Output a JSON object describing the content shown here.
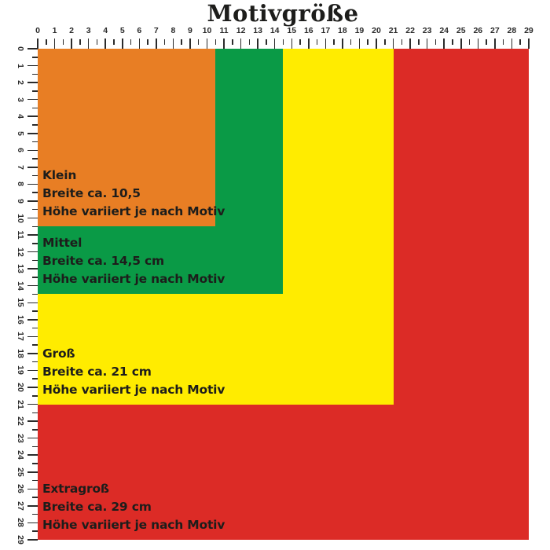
{
  "title": "Motivgröße",
  "ruler": {
    "unit_min": 0,
    "unit_max": 29,
    "numbered_step": 1,
    "minor_step": 0.5
  },
  "text_color": "#1D1D1B",
  "sizes": [
    {
      "id": "klein",
      "name": "Klein",
      "width_label": "Breite ca. 10,5",
      "height_note": "Höhe variiert je nach Motiv",
      "width_cm": 10.5,
      "color": "#E87E24"
    },
    {
      "id": "mittel",
      "name": "Mittel",
      "width_label": "Breite ca. 14,5 cm",
      "height_note": "Höhe variiert je nach Motiv",
      "width_cm": 14.5,
      "color": "#0A9A46"
    },
    {
      "id": "gross",
      "name": "Groß",
      "width_label": "Breite ca. 21 cm",
      "height_note": "Höhe variiert je nach Motiv",
      "width_cm": 21,
      "color": "#FFEC00"
    },
    {
      "id": "extragross",
      "name": "Extragroß",
      "width_label": "Breite ca. 29 cm",
      "height_note": "Höhe variiert je nach Motiv",
      "width_cm": 29,
      "color": "#DC2B26"
    }
  ]
}
